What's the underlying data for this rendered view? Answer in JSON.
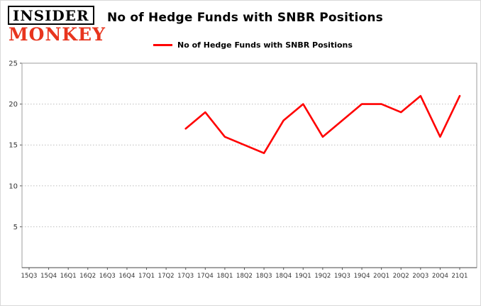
{
  "logo": {
    "line1": "INSIDER",
    "line2": "MONKEY"
  },
  "header": {
    "title": "No of Hedge Funds with SNBR Positions"
  },
  "legend": {
    "label": "No of Hedge Funds with SNBR Positions",
    "color": "#ff0000"
  },
  "chart_data": {
    "type": "line",
    "title": "No of Hedge Funds with SNBR Positions",
    "xlabel": "",
    "ylabel": "",
    "categories": [
      "15Q3",
      "15Q4",
      "16Q1",
      "16Q2",
      "16Q3",
      "16Q4",
      "17Q1",
      "17Q2",
      "17Q3",
      "17Q4",
      "18Q1",
      "18Q2",
      "18Q3",
      "18Q4",
      "19Q1",
      "19Q2",
      "19Q3",
      "19Q4",
      "20Q1",
      "20Q2",
      "20Q3",
      "20Q4",
      "21Q1"
    ],
    "yticks": [
      5,
      10,
      15,
      20,
      25
    ],
    "ylim": [
      0,
      25
    ],
    "grid": true,
    "legend_position": "top",
    "series": [
      {
        "name": "No of Hedge Funds with SNBR Positions",
        "color": "#ff0000",
        "points": [
          {
            "x": "17Q3",
            "y": 17
          },
          {
            "x": "17Q4",
            "y": 19
          },
          {
            "x": "18Q1",
            "y": 16
          },
          {
            "x": "18Q2",
            "y": 15
          },
          {
            "x": "18Q3",
            "y": 14
          },
          {
            "x": "18Q4",
            "y": 18
          },
          {
            "x": "19Q1",
            "y": 20
          },
          {
            "x": "19Q2",
            "y": 16
          },
          {
            "x": "19Q3",
            "y": 18
          },
          {
            "x": "19Q4",
            "y": 20
          },
          {
            "x": "20Q1",
            "y": 20
          },
          {
            "x": "20Q2",
            "y": 19
          },
          {
            "x": "20Q3",
            "y": 21
          },
          {
            "x": "20Q4",
            "y": 16
          },
          {
            "x": "21Q1",
            "y": 21
          }
        ]
      }
    ]
  }
}
